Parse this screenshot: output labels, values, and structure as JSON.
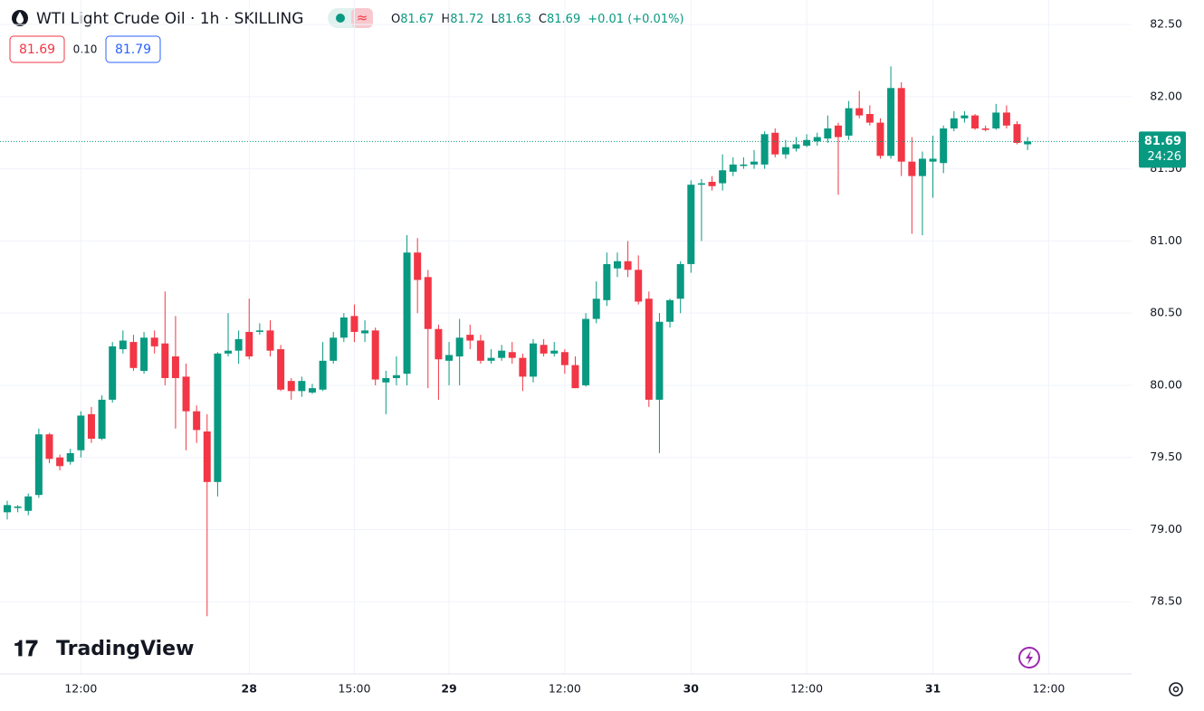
{
  "chart_data": {
    "type": "candlestick",
    "title": "WTI Light Crude Oil · 1h · SKILLING",
    "ohlc_labels": [
      "O",
      "H",
      "L",
      "C"
    ],
    "change": "+0.01 (+0.01%)",
    "spread": "0.10",
    "ask": "81.79",
    "countdown": "24:26",
    "brand": "TradingView",
    "up_color": "#089981",
    "down_color": "#f23645",
    "grid": true,
    "categories": [
      null,
      null,
      null,
      null,
      null,
      null,
      null,
      "12:00",
      null,
      null,
      null,
      null,
      null,
      null,
      null,
      null,
      null,
      null,
      null,
      null,
      null,
      null,
      null,
      "28",
      null,
      null,
      null,
      null,
      null,
      null,
      null,
      null,
      null,
      "15:00",
      null,
      null,
      null,
      null,
      null,
      null,
      null,
      null,
      "29",
      null,
      null,
      null,
      null,
      null,
      null,
      null,
      null,
      null,
      null,
      "12:00",
      null,
      null,
      null,
      null,
      null,
      null,
      null,
      null,
      null,
      null,
      null,
      "30",
      null,
      null,
      null,
      null,
      null,
      null,
      null,
      null,
      null,
      null,
      "12:00",
      null,
      null,
      null,
      null,
      null,
      null,
      null,
      null,
      null,
      null,
      null,
      "31",
      null,
      null,
      null,
      null,
      null,
      null,
      null,
      null,
      null,
      null,
      "12:00"
    ],
    "open": [
      79.12,
      79.15,
      79.13,
      79.24,
      79.66,
      79.5,
      79.47,
      79.55,
      79.8,
      79.63,
      79.9,
      80.25,
      80.3,
      80.1,
      80.33,
      80.29,
      80.2,
      80.06,
      79.82,
      79.68,
      79.33,
      80.22,
      80.24,
      80.37,
      80.37,
      80.38,
      80.25,
      80.03,
      79.96,
      79.95,
      79.97,
      80.17,
      80.33,
      80.48,
      80.36,
      80.38,
      80.02,
      80.05,
      80.08,
      80.92,
      80.75,
      80.39,
      80.17,
      80.2,
      80.35,
      80.31,
      80.17,
      80.19,
      80.23,
      80.19,
      80.06,
      80.28,
      80.22,
      80.23,
      80.14,
      80.0,
      80.46,
      80.59,
      80.81,
      80.86,
      80.8,
      80.6,
      79.9,
      80.44,
      80.6,
      80.84,
      81.39,
      81.41,
      81.4,
      81.48,
      81.52,
      81.53,
      81.53,
      81.75,
      81.6,
      81.64,
      81.66,
      81.69,
      81.71,
      81.8,
      81.73,
      81.92,
      81.88,
      81.82,
      81.59,
      82.06,
      81.55,
      81.45,
      81.55,
      81.54,
      81.78,
      81.85,
      81.87,
      81.78,
      81.78,
      81.89,
      81.81,
      81.67,
      null,
      null
    ],
    "high": [
      79.2,
      79.17,
      79.25,
      79.7,
      79.67,
      79.52,
      79.56,
      79.82,
      79.85,
      79.93,
      80.3,
      80.38,
      80.35,
      80.37,
      80.38,
      80.65,
      80.48,
      80.15,
      79.86,
      79.8,
      80.23,
      80.5,
      80.38,
      80.6,
      80.43,
      80.45,
      80.28,
      80.05,
      80.06,
      80.01,
      80.3,
      80.37,
      80.5,
      80.56,
      80.45,
      80.4,
      80.1,
      80.2,
      81.04,
      81.02,
      80.8,
      80.42,
      80.3,
      80.46,
      80.42,
      80.35,
      80.25,
      80.28,
      80.3,
      80.22,
      80.32,
      80.32,
      80.3,
      80.25,
      80.2,
      80.5,
      80.72,
      80.92,
      80.92,
      81.0,
      80.9,
      80.65,
      80.5,
      80.6,
      80.86,
      81.42,
      81.43,
      81.45,
      81.6,
      81.58,
      81.58,
      81.63,
      81.76,
      81.78,
      81.7,
      81.72,
      81.74,
      81.75,
      81.87,
      81.82,
      81.97,
      82.04,
      81.94,
      81.85,
      82.21,
      82.1,
      81.72,
      81.62,
      81.73,
      81.8,
      81.9,
      81.9,
      81.88,
      81.8,
      81.95,
      81.94,
      81.83,
      81.72,
      null,
      null
    ],
    "low": [
      79.07,
      79.12,
      79.1,
      79.22,
      79.46,
      79.41,
      79.45,
      79.5,
      79.6,
      79.62,
      79.88,
      80.22,
      80.1,
      80.08,
      80.22,
      80.0,
      79.7,
      79.55,
      79.6,
      78.4,
      79.23,
      80.2,
      80.15,
      80.18,
      80.35,
      80.2,
      79.96,
      79.9,
      79.92,
      79.94,
      79.96,
      80.15,
      80.3,
      80.3,
      80.3,
      80.0,
      79.8,
      80.0,
      80.0,
      80.5,
      79.98,
      79.9,
      80.0,
      80.0,
      80.25,
      80.15,
      80.15,
      80.17,
      80.15,
      79.96,
      80.02,
      80.2,
      80.2,
      80.08,
      79.98,
      79.99,
      80.43,
      80.55,
      80.75,
      80.75,
      80.56,
      79.85,
      79.53,
      80.4,
      80.5,
      80.78,
      81.0,
      81.35,
      81.35,
      81.45,
      81.5,
      81.5,
      81.5,
      81.58,
      81.57,
      81.62,
      81.65,
      81.66,
      81.68,
      81.32,
      81.7,
      81.85,
      81.8,
      81.57,
      81.57,
      81.45,
      81.05,
      81.04,
      81.3,
      81.47,
      81.76,
      81.82,
      81.77,
      81.76,
      81.77,
      81.78,
      81.67,
      81.63,
      null,
      null
    ],
    "close": [
      79.17,
      79.16,
      79.23,
      79.66,
      79.49,
      79.44,
      79.53,
      79.79,
      79.63,
      79.9,
      80.27,
      80.31,
      80.12,
      80.33,
      80.27,
      80.05,
      80.05,
      79.82,
      79.69,
      79.33,
      80.22,
      80.24,
      80.32,
      80.2,
      80.38,
      80.24,
      79.97,
      79.96,
      80.03,
      79.98,
      80.17,
      80.33,
      80.47,
      80.37,
      80.38,
      80.04,
      80.05,
      80.07,
      80.92,
      80.73,
      80.39,
      80.18,
      80.21,
      80.33,
      80.31,
      80.17,
      80.19,
      80.24,
      80.19,
      80.06,
      80.29,
      80.22,
      80.24,
      80.14,
      79.98,
      80.46,
      80.6,
      80.84,
      80.86,
      80.8,
      80.58,
      79.9,
      80.44,
      80.59,
      80.84,
      81.39,
      81.4,
      81.38,
      81.49,
      81.53,
      81.53,
      81.55,
      81.74,
      81.6,
      81.65,
      81.67,
      81.7,
      81.72,
      81.78,
      81.72,
      81.92,
      81.87,
      81.82,
      81.59,
      82.06,
      81.55,
      81.45,
      81.57,
      81.57,
      81.78,
      81.85,
      81.87,
      81.78,
      81.77,
      81.89,
      81.8,
      81.68,
      81.69,
      null,
      null
    ],
    "ylim": [
      78.0,
      82.67
    ],
    "yticks": [
      {
        "value": 78.5,
        "label": "78.50"
      },
      {
        "value": 79,
        "label": "79.00"
      },
      {
        "value": 79.5,
        "label": "79.50"
      },
      {
        "value": 80,
        "label": "80.00"
      },
      {
        "value": 80.5,
        "label": "80.50"
      },
      {
        "value": 81,
        "label": "81.00"
      },
      {
        "value": 81.5,
        "label": "81.50"
      },
      {
        "value": 82,
        "label": "82.00"
      },
      {
        "value": 82.5,
        "label": "82.50"
      }
    ]
  }
}
